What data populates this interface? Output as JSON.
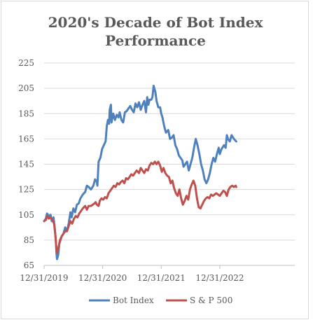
{
  "chart_data": {
    "type": "line",
    "title_lines": [
      "2020's Decade of Bot Index",
      "Performance"
    ],
    "xlabel": "",
    "ylabel": "",
    "x_ticks": [
      "12/31/2019",
      "12/31/2020",
      "12/31/2021",
      "12/31/2022"
    ],
    "x_range": [
      2019.0,
      2023.28
    ],
    "y_ticks": [
      "65",
      "85",
      "105",
      "125",
      "145",
      "165",
      "185",
      "205",
      "225"
    ],
    "ylim": [
      65,
      225
    ],
    "grid": true,
    "legend_position": "bottom",
    "series": [
      {
        "name": "Bot Index",
        "color": "#4f81bd",
        "points": [
          [
            2019.0,
            100
          ],
          [
            2019.03,
            102
          ],
          [
            2019.05,
            106
          ],
          [
            2019.08,
            104
          ],
          [
            2019.11,
            105
          ],
          [
            2019.13,
            100
          ],
          [
            2019.16,
            103
          ],
          [
            2019.18,
            95
          ],
          [
            2019.2,
            85
          ],
          [
            2019.21,
            75
          ],
          [
            2019.22,
            70
          ],
          [
            2019.24,
            73
          ],
          [
            2019.26,
            82
          ],
          [
            2019.3,
            88
          ],
          [
            2019.33,
            90
          ],
          [
            2019.36,
            95
          ],
          [
            2019.39,
            92
          ],
          [
            2019.42,
            98
          ],
          [
            2019.45,
            107
          ],
          [
            2019.47,
            103
          ],
          [
            2019.5,
            110
          ],
          [
            2019.53,
            107
          ],
          [
            2019.56,
            113
          ],
          [
            2019.59,
            114
          ],
          [
            2019.62,
            118
          ],
          [
            2019.66,
            121
          ],
          [
            2019.7,
            123
          ],
          [
            2019.73,
            128
          ],
          [
            2019.76,
            127
          ],
          [
            2019.8,
            125
          ],
          [
            2019.84,
            128
          ],
          [
            2019.87,
            133
          ],
          [
            2019.9,
            131
          ],
          [
            2019.91,
            128
          ],
          [
            2019.93,
            147
          ],
          [
            2019.96,
            150
          ],
          [
            2019.99,
            157
          ],
          [
            2020.02,
            160
          ],
          [
            2020.05,
            163
          ],
          [
            2020.07,
            175
          ],
          [
            2020.09,
            180
          ],
          [
            2020.11,
            177
          ],
          [
            2020.12,
            188
          ],
          [
            2020.14,
            192
          ],
          [
            2020.15,
            178
          ],
          [
            2020.18,
            185
          ],
          [
            2020.21,
            180
          ],
          [
            2020.24,
            184
          ],
          [
            2020.27,
            182
          ],
          [
            2020.29,
            186
          ],
          [
            2020.32,
            180
          ],
          [
            2020.35,
            178
          ],
          [
            2020.38,
            186
          ],
          [
            2020.41,
            187
          ],
          [
            2020.44,
            189
          ],
          [
            2020.47,
            191
          ],
          [
            2020.5,
            188
          ],
          [
            2020.53,
            186
          ],
          [
            2020.56,
            193
          ],
          [
            2020.59,
            190
          ],
          [
            2020.62,
            194
          ],
          [
            2020.65,
            188
          ],
          [
            2020.68,
            192
          ],
          [
            2020.71,
            195
          ],
          [
            2020.74,
            186
          ],
          [
            2020.76,
            198
          ],
          [
            2020.78,
            192
          ],
          [
            2020.8,
            196
          ],
          [
            2020.83,
            196
          ],
          [
            2020.85,
            198
          ],
          [
            2020.87,
            207
          ],
          [
            2020.9,
            202
          ],
          [
            2020.92,
            195
          ],
          [
            2020.95,
            190
          ],
          [
            2020.98,
            190
          ],
          [
            2021.0,
            185
          ],
          [
            2021.02,
            182
          ],
          [
            2021.05,
            175
          ],
          [
            2021.08,
            170
          ],
          [
            2021.1,
            171
          ],
          [
            2021.12,
            172
          ],
          [
            2021.15,
            165
          ],
          [
            2021.18,
            166
          ],
          [
            2021.21,
            168
          ],
          [
            2021.24,
            160
          ],
          [
            2021.27,
            157
          ],
          [
            2021.3,
            152
          ],
          [
            2021.33,
            150
          ],
          [
            2021.36,
            148
          ],
          [
            2021.38,
            143
          ],
          [
            2021.41,
            145
          ],
          [
            2021.44,
            147
          ],
          [
            2021.47,
            140
          ],
          [
            2021.5,
            145
          ],
          [
            2021.53,
            150
          ],
          [
            2021.56,
            158
          ],
          [
            2021.59,
            165
          ],
          [
            2021.62,
            160
          ],
          [
            2021.65,
            153
          ],
          [
            2021.68,
            145
          ],
          [
            2021.71,
            140
          ],
          [
            2021.74,
            133
          ],
          [
            2021.77,
            130
          ],
          [
            2021.8,
            133
          ],
          [
            2021.83,
            138
          ],
          [
            2021.86,
            145
          ],
          [
            2021.89,
            150
          ],
          [
            2021.92,
            147
          ],
          [
            2021.95,
            153
          ],
          [
            2021.98,
            158
          ],
          [
            2022.0,
            153
          ],
          [
            2022.03,
            157
          ],
          [
            2022.07,
            160
          ],
          [
            2022.1,
            158
          ],
          [
            2022.12,
            168
          ],
          [
            2022.14,
            165
          ],
          [
            2022.17,
            163
          ],
          [
            2022.2,
            168
          ],
          [
            2022.24,
            165
          ],
          [
            2022.28,
            163
          ]
        ]
      },
      {
        "name": "S & P 500",
        "color": "#c0504d",
        "points": [
          [
            2019.0,
            100
          ],
          [
            2019.03,
            101
          ],
          [
            2019.05,
            104
          ],
          [
            2019.08,
            102
          ],
          [
            2019.11,
            103
          ],
          [
            2019.14,
            101
          ],
          [
            2019.17,
            98
          ],
          [
            2019.19,
            90
          ],
          [
            2019.21,
            78
          ],
          [
            2019.22,
            75
          ],
          [
            2019.24,
            78
          ],
          [
            2019.27,
            85
          ],
          [
            2019.3,
            88
          ],
          [
            2019.33,
            90
          ],
          [
            2019.36,
            92
          ],
          [
            2019.39,
            92
          ],
          [
            2019.42,
            96
          ],
          [
            2019.45,
            100
          ],
          [
            2019.48,
            98
          ],
          [
            2019.51,
            102
          ],
          [
            2019.54,
            104
          ],
          [
            2019.57,
            103
          ],
          [
            2019.6,
            106
          ],
          [
            2019.63,
            108
          ],
          [
            2019.66,
            110
          ],
          [
            2019.7,
            112
          ],
          [
            2019.73,
            109
          ],
          [
            2019.76,
            112
          ],
          [
            2019.8,
            112
          ],
          [
            2019.83,
            113
          ],
          [
            2019.86,
            114
          ],
          [
            2019.88,
            115
          ],
          [
            2019.9,
            113
          ],
          [
            2019.93,
            112
          ],
          [
            2019.95,
            116
          ],
          [
            2019.98,
            118
          ],
          [
            2020.01,
            117
          ],
          [
            2020.04,
            119
          ],
          [
            2020.07,
            118
          ],
          [
            2020.1,
            122
          ],
          [
            2020.13,
            124
          ],
          [
            2020.16,
            126
          ],
          [
            2020.19,
            128
          ],
          [
            2020.22,
            127
          ],
          [
            2020.25,
            130
          ],
          [
            2020.28,
            129
          ],
          [
            2020.31,
            131
          ],
          [
            2020.34,
            132
          ],
          [
            2020.37,
            130
          ],
          [
            2020.4,
            134
          ],
          [
            2020.43,
            133
          ],
          [
            2020.46,
            135
          ],
          [
            2020.49,
            137
          ],
          [
            2020.52,
            136
          ],
          [
            2020.55,
            138
          ],
          [
            2020.58,
            140
          ],
          [
            2020.62,
            138
          ],
          [
            2020.65,
            142
          ],
          [
            2020.68,
            140
          ],
          [
            2020.71,
            138
          ],
          [
            2020.74,
            141
          ],
          [
            2020.77,
            140
          ],
          [
            2020.8,
            144
          ],
          [
            2020.83,
            146
          ],
          [
            2020.86,
            145
          ],
          [
            2020.89,
            147
          ],
          [
            2020.92,
            145
          ],
          [
            2020.95,
            147
          ],
          [
            2020.98,
            144
          ],
          [
            2021.01,
            139
          ],
          [
            2021.04,
            142
          ],
          [
            2021.07,
            138
          ],
          [
            2021.1,
            136
          ],
          [
            2021.13,
            135
          ],
          [
            2021.16,
            130
          ],
          [
            2021.19,
            132
          ],
          [
            2021.22,
            126
          ],
          [
            2021.25,
            122
          ],
          [
            2021.28,
            120
          ],
          [
            2021.31,
            125
          ],
          [
            2021.34,
            118
          ],
          [
            2021.37,
            113
          ],
          [
            2021.4,
            116
          ],
          [
            2021.43,
            120
          ],
          [
            2021.46,
            117
          ],
          [
            2021.49,
            125
          ],
          [
            2021.52,
            129
          ],
          [
            2021.55,
            132
          ],
          [
            2021.58,
            128
          ],
          [
            2021.61,
            118
          ],
          [
            2021.64,
            111
          ],
          [
            2021.67,
            110
          ],
          [
            2021.7,
            113
          ],
          [
            2021.73,
            116
          ],
          [
            2021.76,
            118
          ],
          [
            2021.79,
            119
          ],
          [
            2021.82,
            118
          ],
          [
            2021.85,
            121
          ],
          [
            2021.88,
            120
          ],
          [
            2021.91,
            121
          ],
          [
            2021.94,
            122
          ],
          [
            2021.97,
            121
          ],
          [
            2022.0,
            120
          ],
          [
            2022.03,
            122
          ],
          [
            2022.06,
            124
          ],
          [
            2022.09,
            123
          ],
          [
            2022.12,
            120
          ],
          [
            2022.15,
            125
          ],
          [
            2022.18,
            127
          ],
          [
            2022.21,
            128
          ],
          [
            2022.24,
            127
          ],
          [
            2022.27,
            128
          ],
          [
            2022.28,
            127
          ]
        ]
      }
    ]
  }
}
